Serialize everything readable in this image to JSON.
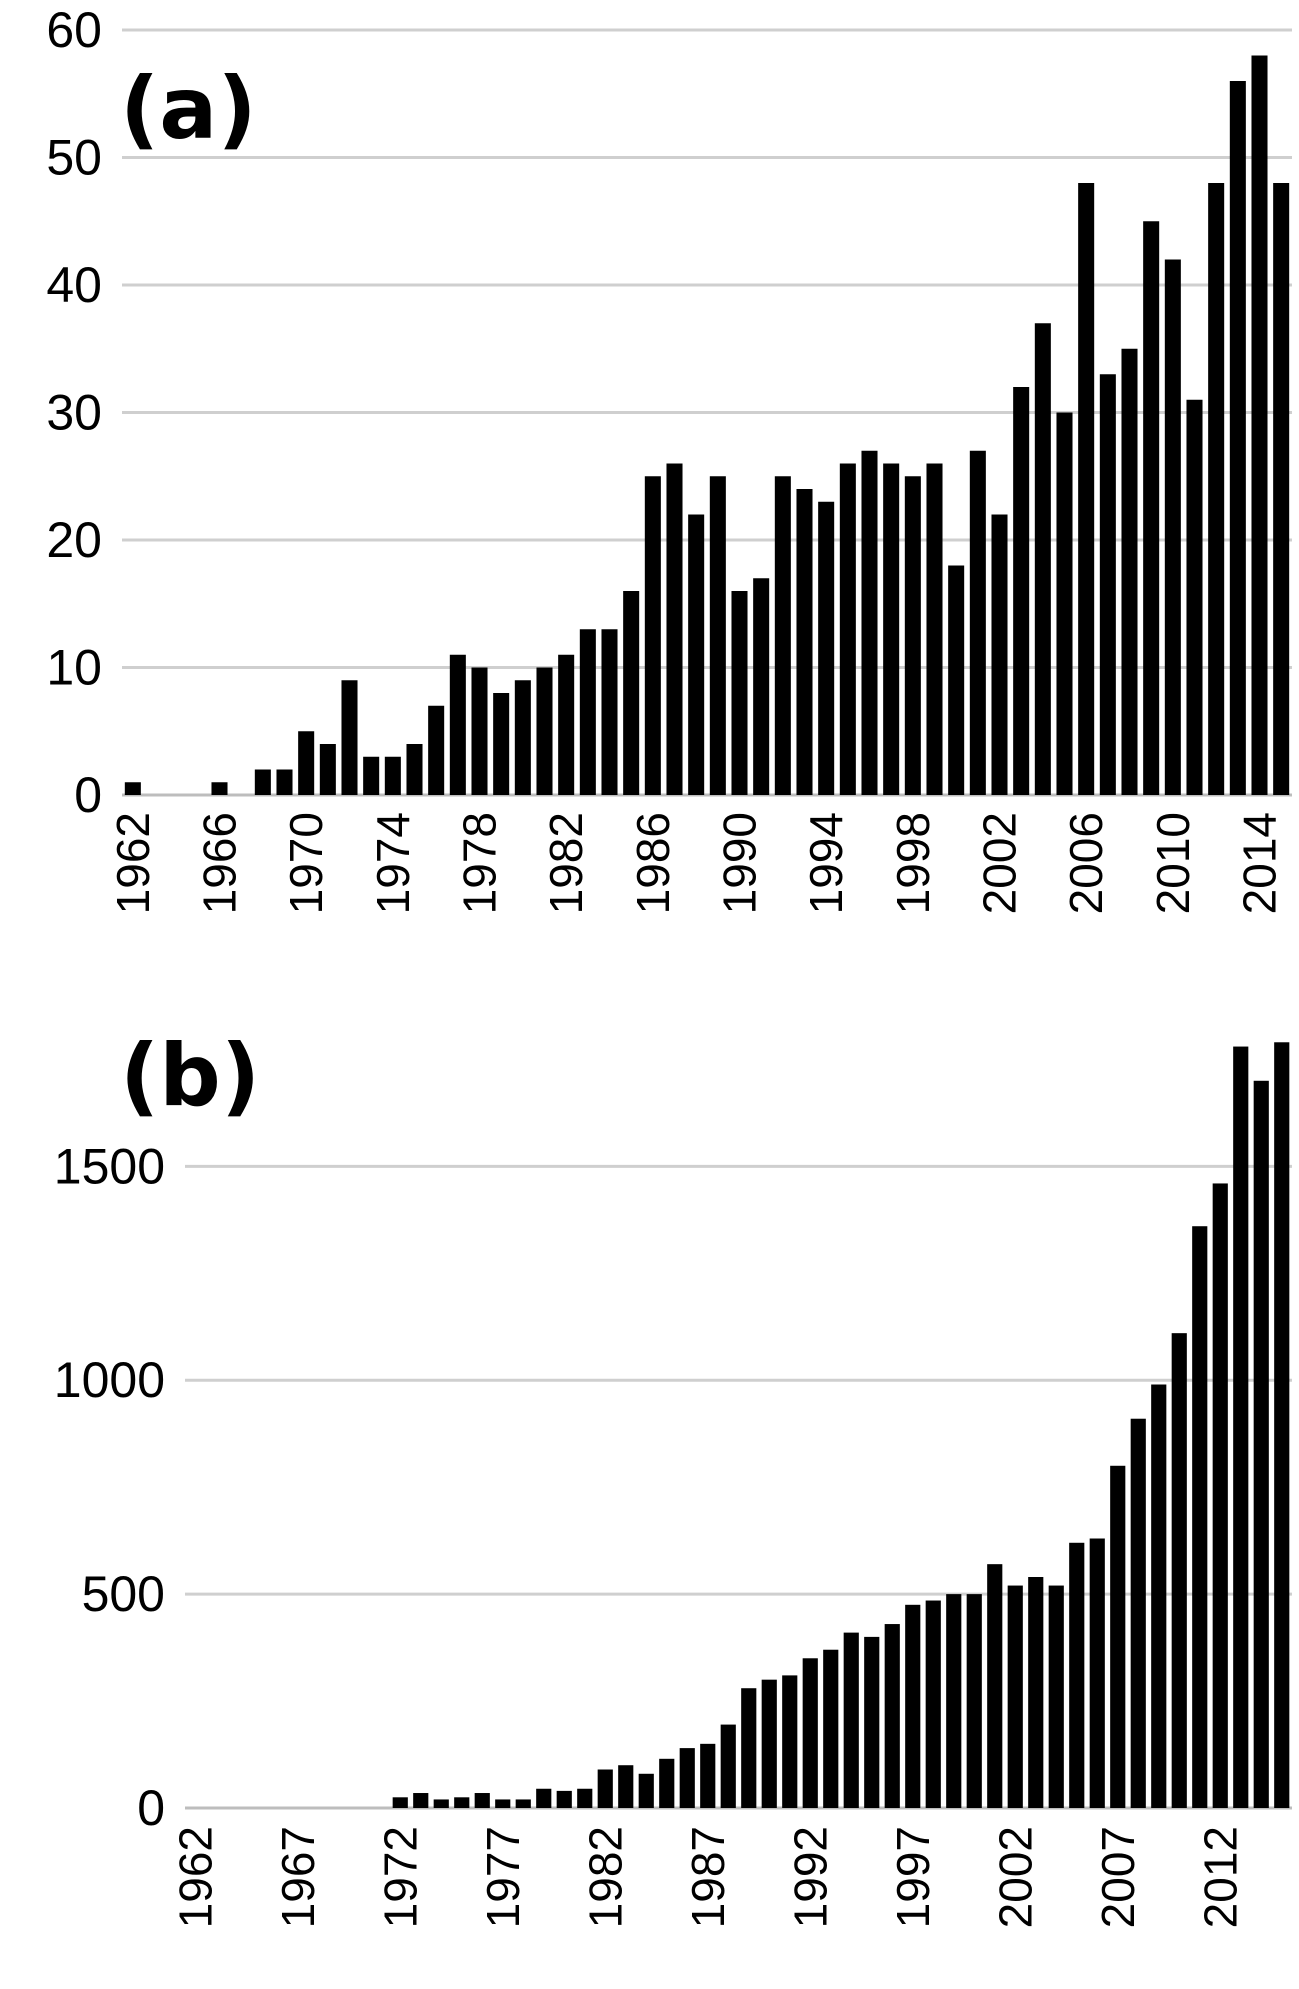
{
  "chart_data": [
    {
      "type": "bar",
      "panel_label": "(a)",
      "title": "",
      "xlabel": "",
      "ylabel": "",
      "ylim": [
        0,
        60
      ],
      "yticks": [
        0,
        10,
        20,
        30,
        40,
        50,
        60
      ],
      "grid": true,
      "x_tick_labels": [
        "1962",
        "1966",
        "1970",
        "1974",
        "1978",
        "1982",
        "1986",
        "1990",
        "1994",
        "1998",
        "2002",
        "2006",
        "2010",
        "2014"
      ],
      "categories": [
        "1962",
        "1963",
        "1964",
        "1965",
        "1966",
        "1967",
        "1968",
        "1969",
        "1970",
        "1971",
        "1972",
        "1973",
        "1974",
        "1975",
        "1976",
        "1977",
        "1978",
        "1979",
        "1980",
        "1981",
        "1982",
        "1983",
        "1984",
        "1985",
        "1986",
        "1987",
        "1988",
        "1989",
        "1990",
        "1991",
        "1992",
        "1993",
        "1994",
        "1995",
        "1996",
        "1997",
        "1998",
        "1999",
        "2000",
        "2001",
        "2002",
        "2003",
        "2004",
        "2005",
        "2006",
        "2007",
        "2008",
        "2009",
        "2010",
        "2011",
        "2012",
        "2013",
        "2014",
        "2015"
      ],
      "values": [
        1,
        0,
        0,
        0,
        1,
        0,
        2,
        2,
        5,
        4,
        9,
        3,
        3,
        4,
        7,
        11,
        10,
        8,
        9,
        10,
        11,
        13,
        13,
        16,
        25,
        26,
        22,
        25,
        16,
        17,
        25,
        24,
        23,
        26,
        27,
        26,
        25,
        26,
        18,
        27,
        22,
        32,
        37,
        30,
        48,
        33,
        35,
        45,
        42,
        31,
        48,
        56,
        58,
        48
      ]
    },
    {
      "type": "bar",
      "panel_label": "(b)",
      "title": "",
      "xlabel": "",
      "ylabel": "",
      "ylim": [
        0,
        1800
      ],
      "yticks": [
        0,
        500,
        1000,
        1500
      ],
      "grid": true,
      "x_tick_labels": [
        "1962",
        "1967",
        "1972",
        "1977",
        "1982",
        "1987",
        "1992",
        "1997",
        "2002",
        "2007",
        "2012"
      ],
      "categories": [
        "1962",
        "1963",
        "1964",
        "1965",
        "1966",
        "1967",
        "1968",
        "1969",
        "1970",
        "1971",
        "1972",
        "1973",
        "1974",
        "1975",
        "1976",
        "1977",
        "1978",
        "1979",
        "1980",
        "1981",
        "1982",
        "1983",
        "1984",
        "1985",
        "1986",
        "1987",
        "1988",
        "1989",
        "1990",
        "1991",
        "1992",
        "1993",
        "1994",
        "1995",
        "1996",
        "1997",
        "1998",
        "1999",
        "2000",
        "2001",
        "2002",
        "2003",
        "2004",
        "2005",
        "2006",
        "2007",
        "2008",
        "2009",
        "2010",
        "2011",
        "2012",
        "2013",
        "2014",
        "2015"
      ],
      "values": [
        0,
        0,
        0,
        0,
        0,
        0,
        0,
        0,
        0,
        0,
        25,
        35,
        20,
        25,
        35,
        20,
        20,
        45,
        40,
        45,
        90,
        100,
        80,
        115,
        140,
        150,
        195,
        280,
        300,
        310,
        350,
        370,
        410,
        400,
        430,
        475,
        485,
        500,
        500,
        570,
        520,
        540,
        520,
        620,
        630,
        800,
        910,
        990,
        1110,
        1360,
        1460,
        1780,
        1700,
        1790
      ]
    }
  ]
}
